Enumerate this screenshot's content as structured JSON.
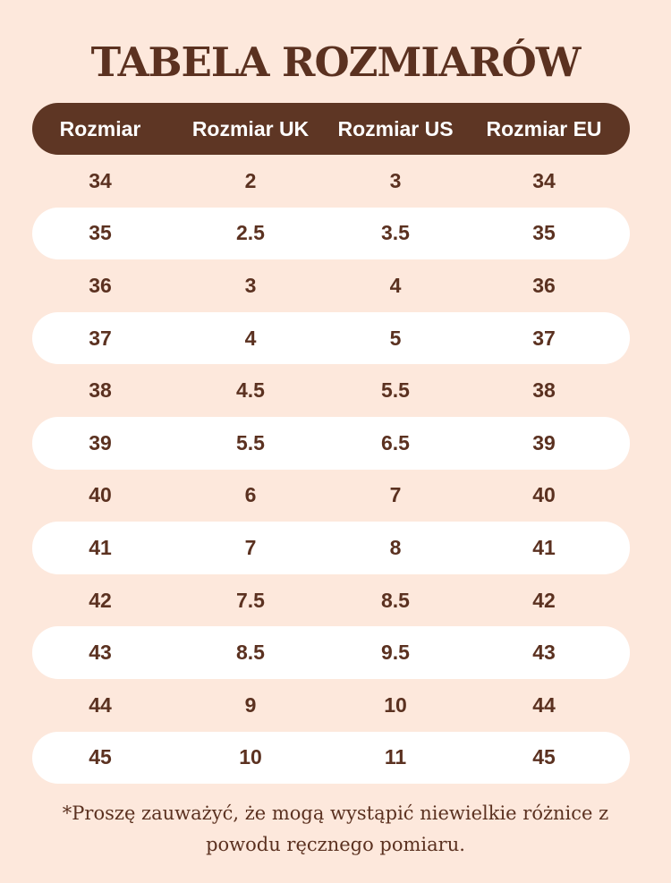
{
  "title": "TABELA ROZMIARÓW",
  "table": {
    "headers": [
      "Rozmiar",
      "Rozmiar UK",
      "Rozmiar US",
      "Rozmiar EU"
    ],
    "rows": [
      [
        "34",
        "2",
        "3",
        "34"
      ],
      [
        "35",
        "2.5",
        "3.5",
        "35"
      ],
      [
        "36",
        "3",
        "4",
        "36"
      ],
      [
        "37",
        "4",
        "5",
        "37"
      ],
      [
        "38",
        "4.5",
        "5.5",
        "38"
      ],
      [
        "39",
        "5.5",
        "6.5",
        "39"
      ],
      [
        "40",
        "6",
        "7",
        "40"
      ],
      [
        "41",
        "7",
        "8",
        "41"
      ],
      [
        "42",
        "7.5",
        "8.5",
        "42"
      ],
      [
        "43",
        "8.5",
        "9.5",
        "43"
      ],
      [
        "44",
        "9",
        "10",
        "44"
      ],
      [
        "45",
        "10",
        "11",
        "45"
      ]
    ]
  },
  "note": {
    "line1": "*Proszę zauważyć, że mogą wystąpić niewielkie różnice z",
    "line2": "powodu ręcznego pomiaru."
  },
  "colors": {
    "background": "#fde8dc",
    "header_bg": "#5e3624",
    "text": "#5b3120",
    "alt_row": "#ffffff"
  }
}
